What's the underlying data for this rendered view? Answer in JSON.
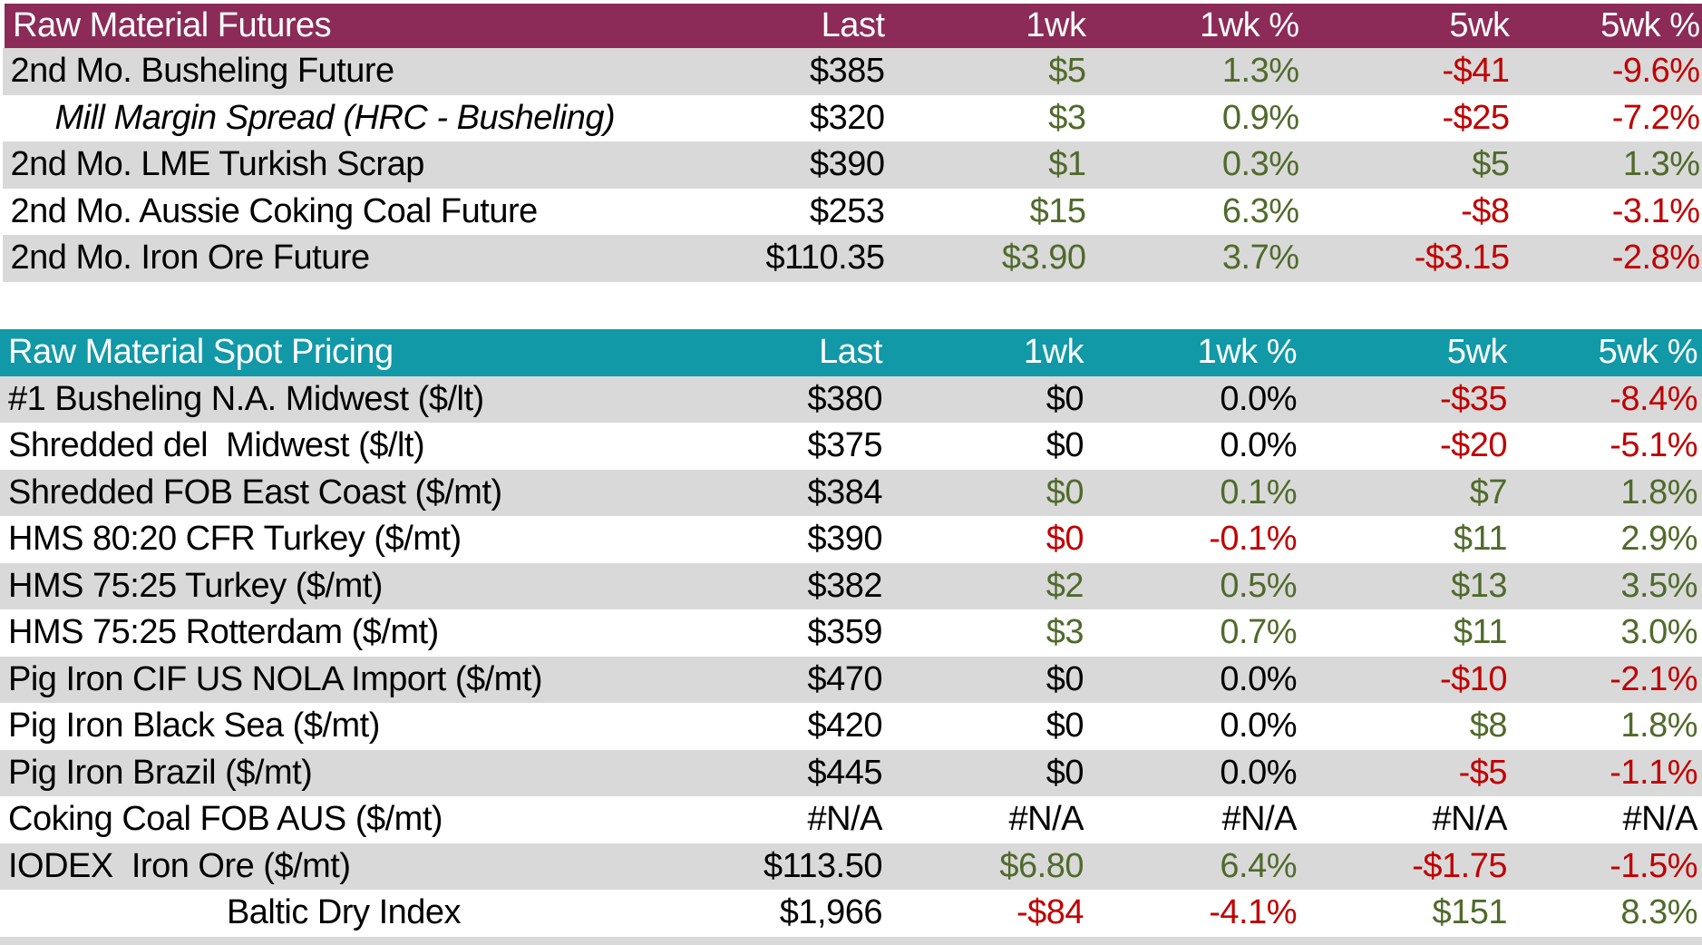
{
  "colors": {
    "futures_header_bg": "#8C2B57",
    "spot_header_bg": "#1199A8",
    "alt_row_bg": "#D9D9D9",
    "positive_text": "#506A2B",
    "negative_text": "#C00000",
    "neutral_text": "#000000",
    "header_text": "#FFFFFF"
  },
  "columns": [
    "Last",
    "1wk",
    "1wk %",
    "5wk",
    "5wk %"
  ],
  "tables": [
    {
      "title": "Raw Material Futures",
      "rows": [
        {
          "label": "2nd Mo. Busheling Future",
          "style": "normal",
          "shaded": true,
          "cells": [
            {
              "t": "$385",
              "c": "neutral"
            },
            {
              "t": "$5",
              "c": "positive"
            },
            {
              "t": "1.3%",
              "c": "positive"
            },
            {
              "t": "-$41",
              "c": "negative"
            },
            {
              "t": "-9.6%",
              "c": "negative"
            }
          ]
        },
        {
          "label": "Mill Margin Spread (HRC - Busheling)",
          "style": "indent",
          "shaded": false,
          "cells": [
            {
              "t": "$320",
              "c": "neutral"
            },
            {
              "t": "$3",
              "c": "positive"
            },
            {
              "t": "0.9%",
              "c": "positive"
            },
            {
              "t": "-$25",
              "c": "negative"
            },
            {
              "t": "-7.2%",
              "c": "negative"
            }
          ]
        },
        {
          "label": "2nd Mo. LME Turkish Scrap",
          "style": "normal",
          "shaded": true,
          "cells": [
            {
              "t": "$390",
              "c": "neutral"
            },
            {
              "t": "$1",
              "c": "positive"
            },
            {
              "t": "0.3%",
              "c": "positive"
            },
            {
              "t": "$5",
              "c": "positive"
            },
            {
              "t": "1.3%",
              "c": "positive"
            }
          ]
        },
        {
          "label": "2nd Mo. Aussie Coking Coal Future",
          "style": "normal",
          "shaded": false,
          "cells": [
            {
              "t": "$253",
              "c": "neutral"
            },
            {
              "t": "$15",
              "c": "positive"
            },
            {
              "t": "6.3%",
              "c": "positive"
            },
            {
              "t": "-$8",
              "c": "negative"
            },
            {
              "t": "-3.1%",
              "c": "negative"
            }
          ]
        },
        {
          "label": "2nd Mo. Iron Ore Future",
          "style": "normal",
          "shaded": true,
          "cells": [
            {
              "t": "$110.35",
              "c": "neutral"
            },
            {
              "t": "$3.90",
              "c": "positive"
            },
            {
              "t": "3.7%",
              "c": "positive"
            },
            {
              "t": "-$3.15",
              "c": "negative"
            },
            {
              "t": "-2.8%",
              "c": "negative"
            }
          ]
        }
      ]
    },
    {
      "title": "Raw Material Spot Pricing",
      "rows": [
        {
          "label": "#1 Busheling N.A. Midwest ($/lt)",
          "style": "normal",
          "shaded": true,
          "cells": [
            {
              "t": "$380",
              "c": "neutral"
            },
            {
              "t": "$0",
              "c": "neutral"
            },
            {
              "t": "0.0%",
              "c": "neutral"
            },
            {
              "t": "-$35",
              "c": "negative"
            },
            {
              "t": "-8.4%",
              "c": "negative"
            }
          ]
        },
        {
          "label": "Shredded del  Midwest ($/lt)",
          "style": "normal",
          "shaded": false,
          "cells": [
            {
              "t": "$375",
              "c": "neutral"
            },
            {
              "t": "$0",
              "c": "neutral"
            },
            {
              "t": "0.0%",
              "c": "neutral"
            },
            {
              "t": "-$20",
              "c": "negative"
            },
            {
              "t": "-5.1%",
              "c": "negative"
            }
          ]
        },
        {
          "label": "Shredded FOB East Coast ($/mt)",
          "style": "normal",
          "shaded": true,
          "cells": [
            {
              "t": "$384",
              "c": "neutral"
            },
            {
              "t": "$0",
              "c": "positive"
            },
            {
              "t": "0.1%",
              "c": "positive"
            },
            {
              "t": "$7",
              "c": "positive"
            },
            {
              "t": "1.8%",
              "c": "positive"
            }
          ]
        },
        {
          "label": "HMS 80:20 CFR Turkey ($/mt)",
          "style": "normal",
          "shaded": false,
          "cells": [
            {
              "t": "$390",
              "c": "neutral"
            },
            {
              "t": "$0",
              "c": "negative"
            },
            {
              "t": "-0.1%",
              "c": "negative"
            },
            {
              "t": "$11",
              "c": "positive"
            },
            {
              "t": "2.9%",
              "c": "positive"
            }
          ]
        },
        {
          "label": "HMS 75:25 Turkey ($/mt)",
          "style": "normal",
          "shaded": true,
          "cells": [
            {
              "t": "$382",
              "c": "neutral"
            },
            {
              "t": "$2",
              "c": "positive"
            },
            {
              "t": "0.5%",
              "c": "positive"
            },
            {
              "t": "$13",
              "c": "positive"
            },
            {
              "t": "3.5%",
              "c": "positive"
            }
          ]
        },
        {
          "label": "HMS 75:25 Rotterdam ($/mt)",
          "style": "normal",
          "shaded": false,
          "cells": [
            {
              "t": "$359",
              "c": "neutral"
            },
            {
              "t": "$3",
              "c": "positive"
            },
            {
              "t": "0.7%",
              "c": "positive"
            },
            {
              "t": "$11",
              "c": "positive"
            },
            {
              "t": "3.0%",
              "c": "positive"
            }
          ]
        },
        {
          "label": "Pig Iron CIF US NOLA Import ($/mt)",
          "style": "normal",
          "shaded": true,
          "cells": [
            {
              "t": "$470",
              "c": "neutral"
            },
            {
              "t": "$0",
              "c": "neutral"
            },
            {
              "t": "0.0%",
              "c": "neutral"
            },
            {
              "t": "-$10",
              "c": "negative"
            },
            {
              "t": "-2.1%",
              "c": "negative"
            }
          ]
        },
        {
          "label": "Pig Iron Black Sea ($/mt)",
          "style": "normal",
          "shaded": false,
          "cells": [
            {
              "t": "$420",
              "c": "neutral"
            },
            {
              "t": "$0",
              "c": "neutral"
            },
            {
              "t": "0.0%",
              "c": "neutral"
            },
            {
              "t": "$8",
              "c": "positive"
            },
            {
              "t": "1.8%",
              "c": "positive"
            }
          ]
        },
        {
          "label": "Pig Iron Brazil ($/mt)",
          "style": "normal",
          "shaded": true,
          "cells": [
            {
              "t": "$445",
              "c": "neutral"
            },
            {
              "t": "$0",
              "c": "neutral"
            },
            {
              "t": "0.0%",
              "c": "neutral"
            },
            {
              "t": "-$5",
              "c": "negative"
            },
            {
              "t": "-1.1%",
              "c": "negative"
            }
          ]
        },
        {
          "label": "Coking Coal FOB AUS ($/mt)",
          "style": "normal",
          "shaded": false,
          "cells": [
            {
              "t": "#N/A",
              "c": "neutral"
            },
            {
              "t": "#N/A",
              "c": "neutral"
            },
            {
              "t": "#N/A",
              "c": "neutral"
            },
            {
              "t": "#N/A",
              "c": "neutral"
            },
            {
              "t": "#N/A",
              "c": "neutral"
            }
          ]
        },
        {
          "label": "IODEX  Iron Ore ($/mt)",
          "style": "normal",
          "shaded": true,
          "cells": [
            {
              "t": "$113.50",
              "c": "neutral"
            },
            {
              "t": "$6.80",
              "c": "positive"
            },
            {
              "t": "6.4%",
              "c": "positive"
            },
            {
              "t": "-$1.75",
              "c": "negative"
            },
            {
              "t": "-1.5%",
              "c": "negative"
            }
          ]
        },
        {
          "label": "Baltic Dry Index",
          "style": "center",
          "shaded": false,
          "cells": [
            {
              "t": "$1,966",
              "c": "neutral"
            },
            {
              "t": "-$84",
              "c": "negative"
            },
            {
              "t": "-4.1%",
              "c": "negative"
            },
            {
              "t": "$151",
              "c": "positive"
            },
            {
              "t": "8.3%",
              "c": "positive"
            }
          ]
        }
      ]
    }
  ]
}
